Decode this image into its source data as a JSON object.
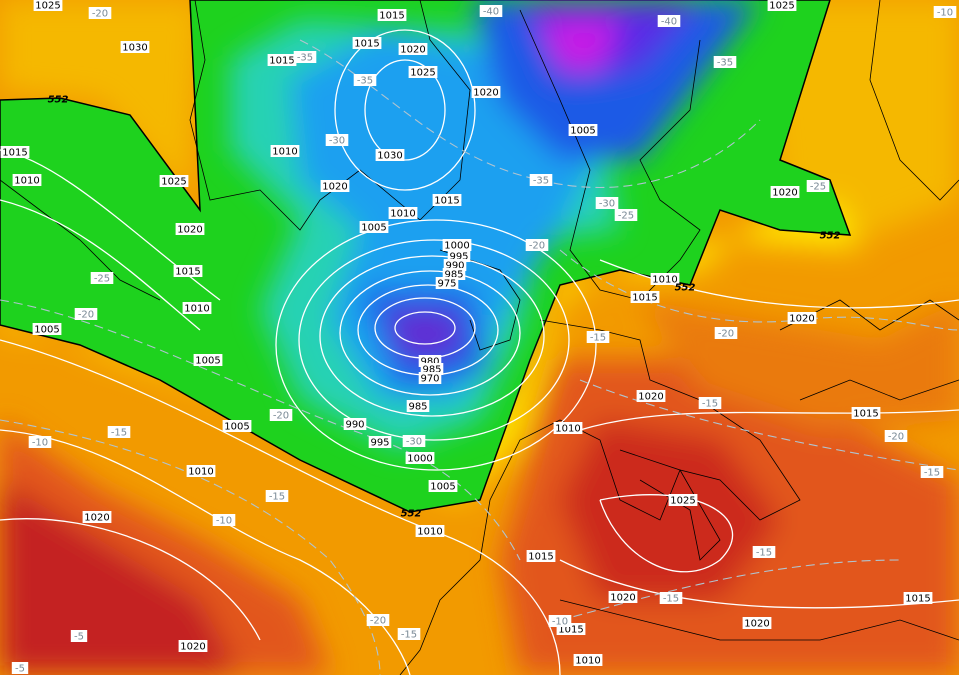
{
  "isobar_labels": [
    "1025",
    "1030",
    "1015",
    "1015",
    "1020",
    "1015",
    "1025",
    "1020",
    "1010",
    "1030",
    "1020",
    "1005",
    "1025",
    "1025",
    "1010",
    "1015",
    "1020",
    "1015",
    "1010",
    "1005",
    "1010",
    "1015",
    "1005",
    "1000",
    "995",
    "990",
    "985",
    "975",
    "980",
    "985",
    "970",
    "985",
    "990",
    "995",
    "1000",
    "1005",
    "1010",
    "1005",
    "1005",
    "1010",
    "1020",
    "1020",
    "1010",
    "1015",
    "1020",
    "1020",
    "1010",
    "1015",
    "1025",
    "1015",
    "1020",
    "1020",
    "1015",
    "1015",
    "1010",
    "1020"
  ],
  "temperature_labels": [
    "-20",
    "-40",
    "-40",
    "-10",
    "-35",
    "-35",
    "-35",
    "-30",
    "-35",
    "-30",
    "-25",
    "-25",
    "-20",
    "-25",
    "-20",
    "-15",
    "-20",
    "-15",
    "-20",
    "-30",
    "-20",
    "-15",
    "-10",
    "-15",
    "-15",
    "-10",
    "-15",
    "-15",
    "-20",
    "-15",
    "-10",
    "-5",
    "-5"
  ],
  "contour_552_labels": [
    "552",
    "552",
    "552",
    "552"
  ]
}
